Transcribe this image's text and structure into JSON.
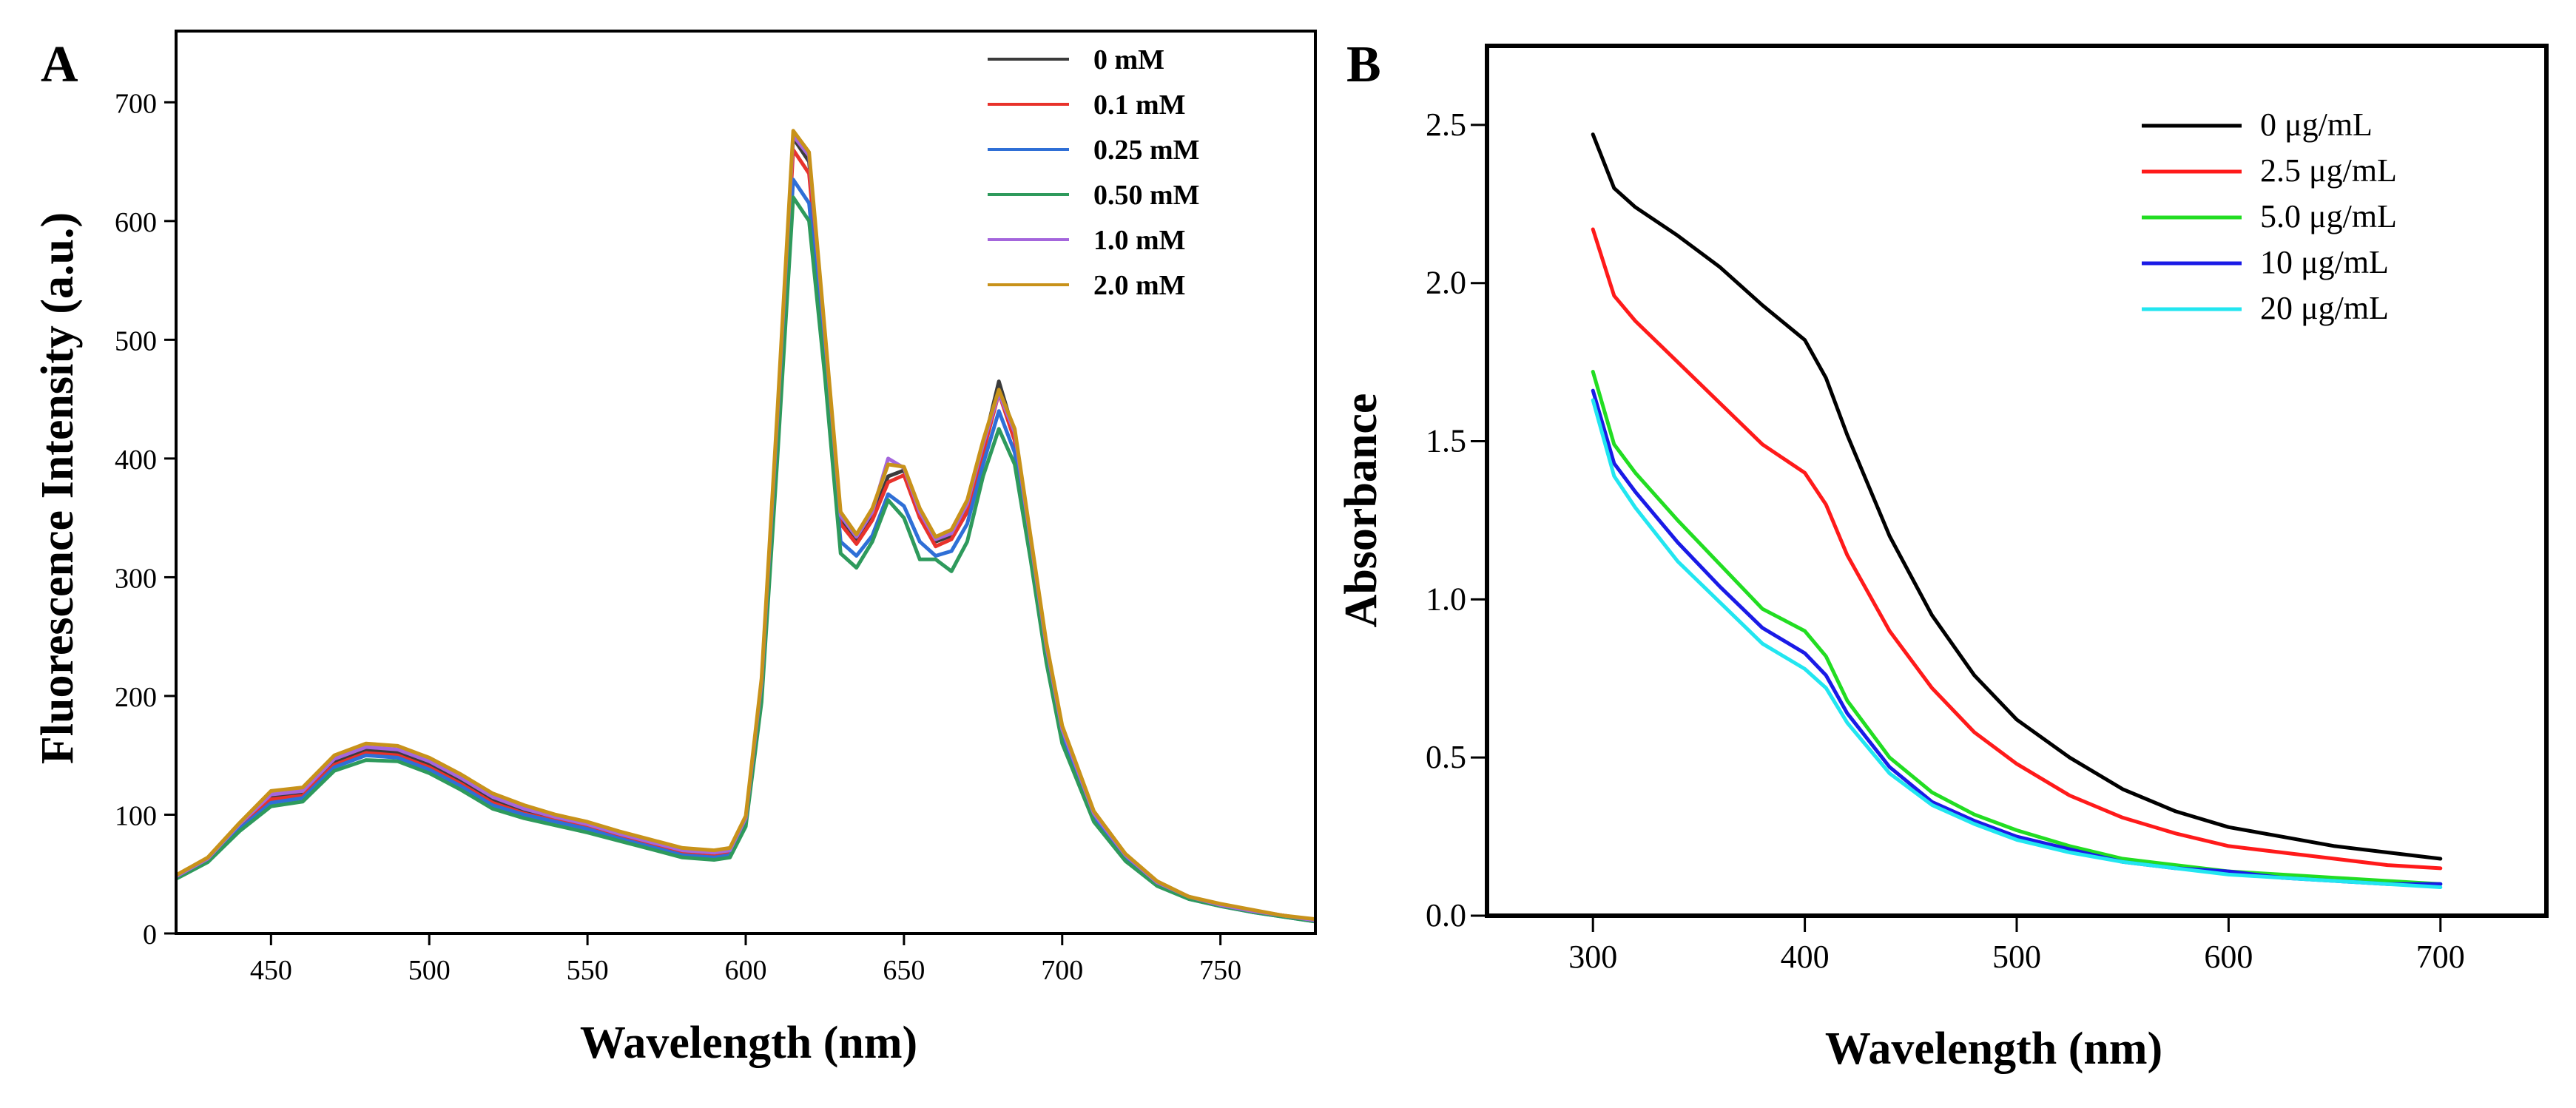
{
  "chart_data": [
    {
      "type": "line",
      "panel": "A",
      "title": "",
      "xlabel": "Wavelength (nm)",
      "ylabel": "Fluorescence Intensity (a.u.)",
      "xlim": [
        420,
        780
      ],
      "ylim": [
        0,
        760
      ],
      "xticks": [
        450,
        500,
        550,
        600,
        650,
        700,
        750
      ],
      "yticks": [
        0,
        100,
        200,
        300,
        400,
        500,
        600,
        700
      ],
      "legend_position": "top-right",
      "x": [
        420,
        430,
        440,
        450,
        460,
        470,
        480,
        490,
        500,
        510,
        520,
        530,
        540,
        550,
        560,
        570,
        580,
        590,
        595,
        600,
        605,
        610,
        615,
        620,
        625,
        630,
        635,
        640,
        645,
        650,
        655,
        660,
        665,
        670,
        675,
        680,
        685,
        690,
        695,
        700,
        710,
        720,
        730,
        740,
        750,
        760,
        770,
        780
      ],
      "series": [
        {
          "name": "0 mM",
          "color": "#3b3b3b",
          "values": [
            48,
            62,
            90,
            115,
            118,
            145,
            155,
            152,
            142,
            128,
            112,
            102,
            96,
            90,
            82,
            75,
            68,
            66,
            68,
            95,
            210,
            430,
            670,
            650,
            500,
            350,
            330,
            350,
            385,
            390,
            355,
            330,
            335,
            360,
            410,
            465,
            420,
            330,
            240,
            170,
            100,
            65,
            42,
            30,
            24,
            19,
            15,
            11
          ]
        },
        {
          "name": "0.1 mM",
          "color": "#e8322b",
          "values": [
            48,
            62,
            90,
            113,
            116,
            142,
            152,
            150,
            140,
            126,
            110,
            101,
            95,
            89,
            81,
            74,
            67,
            65,
            67,
            94,
            205,
            425,
            660,
            640,
            495,
            345,
            328,
            348,
            380,
            386,
            350,
            326,
            332,
            355,
            405,
            455,
            415,
            325,
            237,
            168,
            99,
            64,
            42,
            30,
            24,
            19,
            15,
            11
          ]
        },
        {
          "name": "0.25 mM",
          "color": "#2f6fd6",
          "values": [
            47,
            61,
            88,
            110,
            114,
            140,
            150,
            148,
            138,
            124,
            108,
            100,
            94,
            88,
            80,
            73,
            66,
            64,
            66,
            92,
            200,
            410,
            635,
            615,
            480,
            330,
            318,
            335,
            370,
            360,
            330,
            318,
            322,
            345,
            395,
            440,
            405,
            320,
            233,
            165,
            97,
            63,
            41,
            29,
            23,
            18,
            14,
            10
          ]
        },
        {
          "name": "0.50 mM",
          "color": "#2e9a5c",
          "values": [
            46,
            60,
            86,
            107,
            111,
            137,
            146,
            145,
            135,
            121,
            105,
            97,
            91,
            85,
            78,
            71,
            64,
            62,
            64,
            90,
            195,
            400,
            620,
            600,
            470,
            320,
            308,
            330,
            365,
            350,
            315,
            315,
            305,
            330,
            385,
            425,
            395,
            315,
            228,
            160,
            94,
            61,
            40,
            29,
            23,
            18,
            14,
            10
          ]
        },
        {
          "name": "1.0 mM",
          "color": "#a466dc",
          "values": [
            48,
            63,
            92,
            117,
            120,
            147,
            157,
            155,
            145,
            131,
            115,
            105,
            98,
            92,
            84,
            77,
            70,
            68,
            70,
            97,
            212,
            435,
            672,
            655,
            505,
            352,
            334,
            355,
            400,
            392,
            355,
            332,
            337,
            362,
            412,
            455,
            422,
            332,
            242,
            172,
            101,
            66,
            43,
            31,
            24,
            19,
            15,
            11
          ]
        },
        {
          "name": "2.0 mM",
          "color": "#c8921a",
          "values": [
            49,
            64,
            93,
            120,
            123,
            150,
            160,
            158,
            148,
            134,
            118,
            108,
            100,
            94,
            86,
            79,
            72,
            70,
            72,
            99,
            215,
            440,
            676,
            658,
            508,
            355,
            336,
            358,
            395,
            393,
            358,
            334,
            340,
            365,
            415,
            458,
            425,
            335,
            245,
            175,
            103,
            67,
            44,
            31,
            25,
            20,
            15,
            12
          ]
        }
      ]
    },
    {
      "type": "line",
      "panel": "B",
      "title": "",
      "xlabel": "Wavelength (nm)",
      "ylabel": "Absorbance",
      "xlim": [
        250,
        750
      ],
      "ylim": [
        0.0,
        2.75
      ],
      "xticks": [
        300,
        400,
        500,
        600,
        700
      ],
      "yticks": [
        0.0,
        0.5,
        1.0,
        1.5,
        2.0,
        2.5
      ],
      "ytick_labels": [
        "0.0",
        "0.5",
        "1.0",
        "1.5",
        "2.0",
        "2.5"
      ],
      "legend_position": "top-right",
      "x": [
        300,
        310,
        320,
        340,
        360,
        380,
        400,
        410,
        420,
        440,
        460,
        480,
        500,
        525,
        550,
        575,
        600,
        625,
        650,
        675,
        700
      ],
      "series": [
        {
          "name": "0 μg/mL",
          "color": "#000000",
          "values": [
            2.47,
            2.3,
            2.24,
            2.15,
            2.05,
            1.93,
            1.82,
            1.7,
            1.52,
            1.2,
            0.95,
            0.76,
            0.62,
            0.5,
            0.4,
            0.33,
            0.28,
            0.25,
            0.22,
            0.2,
            0.18
          ]
        },
        {
          "name": "2.5 μg/mL",
          "color": "#ff1a1a",
          "values": [
            2.17,
            1.96,
            1.88,
            1.75,
            1.62,
            1.49,
            1.4,
            1.3,
            1.14,
            0.9,
            0.72,
            0.58,
            0.48,
            0.38,
            0.31,
            0.26,
            0.22,
            0.2,
            0.18,
            0.16,
            0.15
          ]
        },
        {
          "name": "5.0 μg/mL",
          "color": "#22dd22",
          "values": [
            1.72,
            1.49,
            1.4,
            1.25,
            1.11,
            0.97,
            0.9,
            0.82,
            0.68,
            0.5,
            0.39,
            0.32,
            0.27,
            0.22,
            0.18,
            0.16,
            0.14,
            0.13,
            0.12,
            0.11,
            0.1
          ]
        },
        {
          "name": "10 μg/mL",
          "color": "#1a1ae6",
          "values": [
            1.66,
            1.43,
            1.34,
            1.18,
            1.04,
            0.91,
            0.83,
            0.76,
            0.64,
            0.47,
            0.36,
            0.3,
            0.25,
            0.21,
            0.17,
            0.15,
            0.14,
            0.12,
            0.11,
            0.1,
            0.1
          ]
        },
        {
          "name": "20 μg/mL",
          "color": "#22e6f0",
          "values": [
            1.63,
            1.39,
            1.29,
            1.12,
            0.99,
            0.86,
            0.78,
            0.72,
            0.61,
            0.45,
            0.35,
            0.29,
            0.24,
            0.2,
            0.17,
            0.15,
            0.13,
            0.12,
            0.11,
            0.1,
            0.09
          ]
        }
      ]
    }
  ]
}
